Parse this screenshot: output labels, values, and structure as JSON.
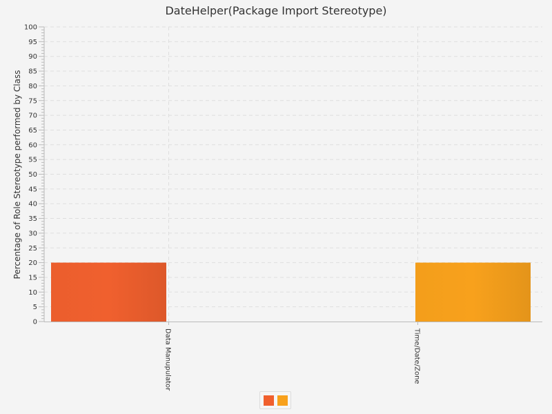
{
  "chart_data": {
    "type": "bar",
    "title": "DateHelper(Package Import Stereotype)",
    "xlabel": "",
    "ylabel": "Percentage of Role Stereotype performed by Class",
    "categories": [
      "Data Manupulator",
      "Time/Date/Zone"
    ],
    "series": [
      {
        "values": [
          20,
          0
        ],
        "color": "#f0602e"
      },
      {
        "values": [
          0,
          20
        ],
        "color": "#f8a11c"
      }
    ],
    "ylim": [
      0,
      100
    ],
    "y_ticks": [
      0,
      5,
      10,
      15,
      20,
      25,
      30,
      35,
      40,
      45,
      50,
      55,
      60,
      65,
      70,
      75,
      80,
      85,
      90,
      95,
      100
    ],
    "grid": true,
    "legend": "bottom-center"
  },
  "colors": {
    "background": "#f4f4f4",
    "grid": "#dedede",
    "axis": "#b9b9b9"
  }
}
